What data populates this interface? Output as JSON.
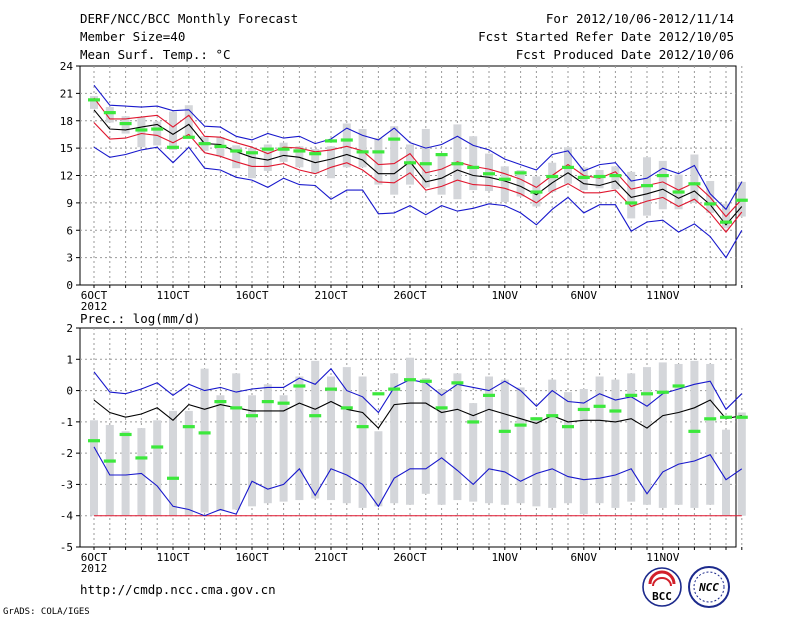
{
  "header": {
    "title": "DERF/NCC/BCC Monthly Forecast",
    "member": "Member Size=40",
    "variable": "Mean Surf. Temp.: °C",
    "period": "For 2012/10/06-2012/11/14",
    "started": "Fcst Started Refer Date 2012/10/05",
    "produced": "Fcst Produced Date 2012/10/06"
  },
  "footer": {
    "url": "http://cmdp.ncc.cma.gov.cn",
    "grads": "GrADS: COLA/IGES",
    "logo_bcc": "BCC",
    "logo_ncc": "NCC"
  },
  "colors": {
    "box": "#d4d6da",
    "mean": "#000000",
    "spread": "#e0162e",
    "extreme": "#1818cc",
    "obs": "#3ce83c",
    "grid": "#9a9a9a"
  },
  "chart_data": [
    {
      "type": "line",
      "title": "Mean Surf. Temp.: °C",
      "ylim": [
        0,
        24
      ],
      "yticks": [
        0,
        3,
        6,
        9,
        12,
        15,
        18,
        21,
        24
      ],
      "xticks": [
        {
          "day": 0,
          "label": "6OCT"
        },
        {
          "day": 5,
          "label": "11OCT"
        },
        {
          "day": 10,
          "label": "16OCT"
        },
        {
          "day": 15,
          "label": "21OCT"
        },
        {
          "day": 20,
          "label": "26OCT"
        },
        {
          "day": 26,
          "label": "1NOV"
        },
        {
          "day": 31,
          "label": "6NOV"
        },
        {
          "day": 36,
          "label": "11NOV"
        }
      ],
      "year_label": "2012",
      "series": [
        {
          "name": "mean",
          "values": [
            19.2,
            17.1,
            17.0,
            17.3,
            17.6,
            16.5,
            17.6,
            15.5,
            15.4,
            14.6,
            14.0,
            13.7,
            14.2,
            14.0,
            13.4,
            13.8,
            14.3,
            13.7,
            12.2,
            12.2,
            13.5,
            11.3,
            11.7,
            12.6,
            12.0,
            11.8,
            11.4,
            10.8,
            9.9,
            11.2,
            12.3,
            11.1,
            10.9,
            11.4,
            9.6,
            10.0,
            10.5,
            9.5,
            10.3,
            8.8,
            6.6,
            8.6
          ]
        },
        {
          "name": "upper",
          "values": [
            20.5,
            18.2,
            18.2,
            18.4,
            18.6,
            17.3,
            18.6,
            16.3,
            16.2,
            15.6,
            15.1,
            14.4,
            15.1,
            15.0,
            14.6,
            14.8,
            15.2,
            14.7,
            13.2,
            13.3,
            14.4,
            12.3,
            12.7,
            13.5,
            13.0,
            12.7,
            12.2,
            11.6,
            10.7,
            12.0,
            13.2,
            12.0,
            11.7,
            12.4,
            10.5,
            10.9,
            11.3,
            10.4,
            11.2,
            9.6,
            7.5,
            9.4
          ]
        },
        {
          "name": "lower",
          "values": [
            17.8,
            16.0,
            16.1,
            16.6,
            16.4,
            15.6,
            16.5,
            14.5,
            14.1,
            13.5,
            13.0,
            13.0,
            13.3,
            12.6,
            12.2,
            12.9,
            13.4,
            12.6,
            11.3,
            11.2,
            12.3,
            10.4,
            10.8,
            11.5,
            11.0,
            10.9,
            10.6,
            10.0,
            9.0,
            10.3,
            11.1,
            10.1,
            10.1,
            10.4,
            8.6,
            9.2,
            9.6,
            8.6,
            9.4,
            7.9,
            5.8,
            8.0
          ]
        },
        {
          "name": "max",
          "values": [
            21.9,
            19.7,
            19.6,
            19.5,
            19.6,
            19.1,
            19.2,
            17.4,
            17.3,
            16.3,
            15.9,
            16.6,
            16.1,
            16.3,
            15.5,
            16.0,
            17.2,
            16.4,
            15.9,
            17.2,
            15.6,
            15.0,
            15.4,
            16.3,
            15.3,
            14.8,
            13.8,
            13.2,
            12.6,
            14.3,
            14.7,
            12.5,
            13.2,
            13.4,
            11.4,
            11.7,
            12.8,
            12.2,
            13.1,
            10.0,
            8.3,
            11.3
          ]
        },
        {
          "name": "min",
          "values": [
            15.1,
            14.0,
            14.3,
            14.8,
            15.1,
            13.4,
            15.1,
            12.8,
            12.6,
            11.8,
            11.5,
            10.7,
            11.7,
            11.0,
            10.9,
            9.4,
            10.4,
            10.4,
            7.8,
            7.9,
            8.7,
            7.7,
            8.7,
            8.1,
            8.4,
            8.9,
            8.7,
            7.9,
            6.6,
            8.3,
            9.6,
            7.9,
            8.8,
            8.8,
            5.9,
            6.9,
            7.1,
            5.8,
            6.7,
            5.3,
            3.0,
            6.0
          ]
        }
      ],
      "boxes": [
        [
          19.3,
          20.7
        ],
        [
          17.8,
          19.5
        ],
        [
          16.6,
          18.5
        ],
        [
          15.1,
          18.4
        ],
        [
          15.3,
          17.9
        ],
        [
          14.8,
          19.0
        ],
        [
          16.3,
          19.7
        ],
        [
          14.7,
          16.3
        ],
        [
          14.1,
          16.2
        ],
        [
          12.8,
          15.3
        ],
        [
          11.7,
          15.0
        ],
        [
          12.5,
          15.4
        ],
        [
          13.5,
          15.6
        ],
        [
          12.9,
          15.2
        ],
        [
          12.2,
          14.9
        ],
        [
          11.7,
          15.2
        ],
        [
          12.9,
          17.7
        ],
        [
          12.9,
          17.1
        ],
        [
          11.0,
          16.1
        ],
        [
          9.9,
          17.4
        ],
        [
          11.0,
          15.4
        ],
        [
          10.7,
          17.1
        ],
        [
          9.9,
          14.3
        ],
        [
          9.4,
          17.6
        ],
        [
          10.4,
          16.3
        ],
        [
          10.3,
          14.4
        ],
        [
          9.1,
          13.0
        ],
        [
          9.7,
          12.6
        ],
        [
          8.6,
          11.9
        ],
        [
          10.2,
          13.4
        ],
        [
          11.1,
          15.1
        ],
        [
          10.4,
          12.9
        ],
        [
          10.6,
          12.6
        ],
        [
          10.5,
          13.0
        ],
        [
          7.3,
          12.4
        ],
        [
          7.6,
          14.0
        ],
        [
          8.3,
          13.6
        ],
        [
          8.3,
          12.1
        ],
        [
          9.0,
          14.3
        ],
        [
          7.9,
          11.4
        ],
        [
          6.2,
          8.9
        ],
        [
          7.5,
          11.3
        ]
      ],
      "observed": [
        20.3,
        18.9,
        17.7,
        17.0,
        17.1,
        15.1,
        16.2,
        15.5,
        15.2,
        14.7,
        14.5,
        14.9,
        14.9,
        14.7,
        14.4,
        15.8,
        15.9,
        14.6,
        14.6,
        16.0,
        13.4,
        13.3,
        14.3,
        13.3,
        12.9,
        12.2,
        11.6,
        12.3,
        10.2,
        11.9,
        12.9,
        11.8,
        11.9,
        12.0,
        9.0,
        10.9,
        12.0,
        10.2,
        11.1,
        8.9,
        6.9,
        9.3
      ]
    },
    {
      "type": "line",
      "title": "Prec.: log(mm/d)",
      "ylim": [
        -5,
        2
      ],
      "yticks": [
        -5,
        -4,
        -3,
        -2,
        -1,
        0,
        1,
        2
      ],
      "xticks": [
        {
          "day": 0,
          "label": "6OCT"
        },
        {
          "day": 5,
          "label": "11OCT"
        },
        {
          "day": 10,
          "label": "16OCT"
        },
        {
          "day": 15,
          "label": "21OCT"
        },
        {
          "day": 20,
          "label": "26OCT"
        },
        {
          "day": 26,
          "label": "1NOV"
        },
        {
          "day": 31,
          "label": "6NOV"
        },
        {
          "day": 36,
          "label": "11NOV"
        }
      ],
      "year_label": "2012",
      "series": [
        {
          "name": "mean",
          "values": [
            -0.3,
            -0.7,
            -0.85,
            -0.75,
            -0.55,
            -0.95,
            -0.45,
            -0.6,
            -0.45,
            -0.55,
            -0.65,
            -0.65,
            -0.65,
            -0.4,
            -0.6,
            -0.35,
            -0.6,
            -0.7,
            -1.2,
            -0.45,
            -0.4,
            -0.4,
            -0.7,
            -0.6,
            -0.8,
            -0.6,
            -0.75,
            -0.9,
            -1.05,
            -0.8,
            -1.0,
            -0.95,
            -0.95,
            -1.0,
            -0.9,
            -1.2,
            -0.8,
            -0.7,
            -0.55,
            -0.3,
            -0.9,
            -0.8
          ]
        },
        {
          "name": "max",
          "values": [
            0.6,
            -0.05,
            -0.1,
            0.05,
            0.25,
            -0.15,
            0.2,
            0.0,
            0.1,
            -0.05,
            0.05,
            0.1,
            0.1,
            0.4,
            0.2,
            0.7,
            0.0,
            -0.2,
            -0.7,
            0.1,
            0.35,
            0.25,
            -0.15,
            0.2,
            0.1,
            0.0,
            0.3,
            0.0,
            -0.5,
            0.0,
            -0.35,
            -0.4,
            -0.1,
            -0.3,
            -0.2,
            -0.5,
            -0.1,
            0.05,
            0.2,
            0.3,
            -0.6,
            -0.1
          ]
        },
        {
          "name": "min",
          "values": [
            -1.8,
            -2.7,
            -2.7,
            -2.65,
            -3.05,
            -3.7,
            -3.8,
            -4.0,
            -3.8,
            -3.95,
            -2.9,
            -3.15,
            -3.0,
            -2.5,
            -3.35,
            -2.5,
            -2.7,
            -3.0,
            -3.7,
            -2.8,
            -2.5,
            -2.5,
            -2.15,
            -2.55,
            -3.0,
            -2.5,
            -2.6,
            -2.9,
            -2.65,
            -2.5,
            -2.75,
            -2.85,
            -2.8,
            -2.7,
            -2.5,
            -3.3,
            -2.6,
            -2.35,
            -2.25,
            -2.05,
            -2.85,
            -2.5
          ]
        }
      ],
      "floor": -4,
      "boxes": [
        [
          -4,
          -0.95
        ],
        [
          -4,
          -1.1
        ],
        [
          -4,
          -1.3
        ],
        [
          -4,
          -1.2
        ],
        [
          -4,
          -0.95
        ],
        [
          -4,
          -0.65
        ],
        [
          -4,
          -0.65
        ],
        [
          -3.9,
          0.7
        ],
        [
          -3.85,
          -0.15
        ],
        [
          -3.8,
          0.55
        ],
        [
          -3.7,
          -0.15
        ],
        [
          -3.6,
          0.2
        ],
        [
          -3.55,
          -0.15
        ],
        [
          -3.5,
          0.45
        ],
        [
          -3.45,
          0.95
        ],
        [
          -3.5,
          0.45
        ],
        [
          -3.6,
          0.75
        ],
        [
          -3.75,
          0.45
        ],
        [
          -3.7,
          -1.3
        ],
        [
          -3.6,
          0.55
        ],
        [
          -3.65,
          1.05
        ],
        [
          -3.3,
          0.4
        ],
        [
          -3.65,
          0.05
        ],
        [
          -3.5,
          0.55
        ],
        [
          -3.55,
          -0.4
        ],
        [
          -3.6,
          0.45
        ],
        [
          -3.65,
          0.35
        ],
        [
          -3.6,
          0.1
        ],
        [
          -3.7,
          -0.85
        ],
        [
          -3.75,
          0.35
        ],
        [
          -3.6,
          -0.05
        ],
        [
          -3.95,
          0.05
        ],
        [
          -3.6,
          0.45
        ],
        [
          -3.75,
          0.35
        ],
        [
          -3.55,
          0.55
        ],
        [
          -3.65,
          0.75
        ],
        [
          -3.75,
          0.9
        ],
        [
          -3.65,
          0.85
        ],
        [
          -3.75,
          0.95
        ],
        [
          -3.65,
          0.85
        ],
        [
          -4,
          -1.25
        ],
        [
          -4,
          -0.7
        ]
      ],
      "observed": [
        -1.6,
        -2.25,
        -1.4,
        -2.15,
        -1.8,
        -2.8,
        -1.15,
        -1.35,
        -0.35,
        -0.55,
        -0.8,
        -0.35,
        -0.4,
        0.15,
        -0.8,
        0.05,
        -0.55,
        -1.15,
        -0.1,
        0.05,
        0.35,
        0.3,
        -0.55,
        0.25,
        -1.0,
        -0.15,
        -1.3,
        -1.1,
        -0.9,
        -0.8,
        -1.15,
        -0.6,
        -0.5,
        -0.65,
        -0.15,
        -0.1,
        -0.05,
        0.15,
        -1.3,
        -0.9,
        -0.85,
        -0.85
      ]
    }
  ]
}
